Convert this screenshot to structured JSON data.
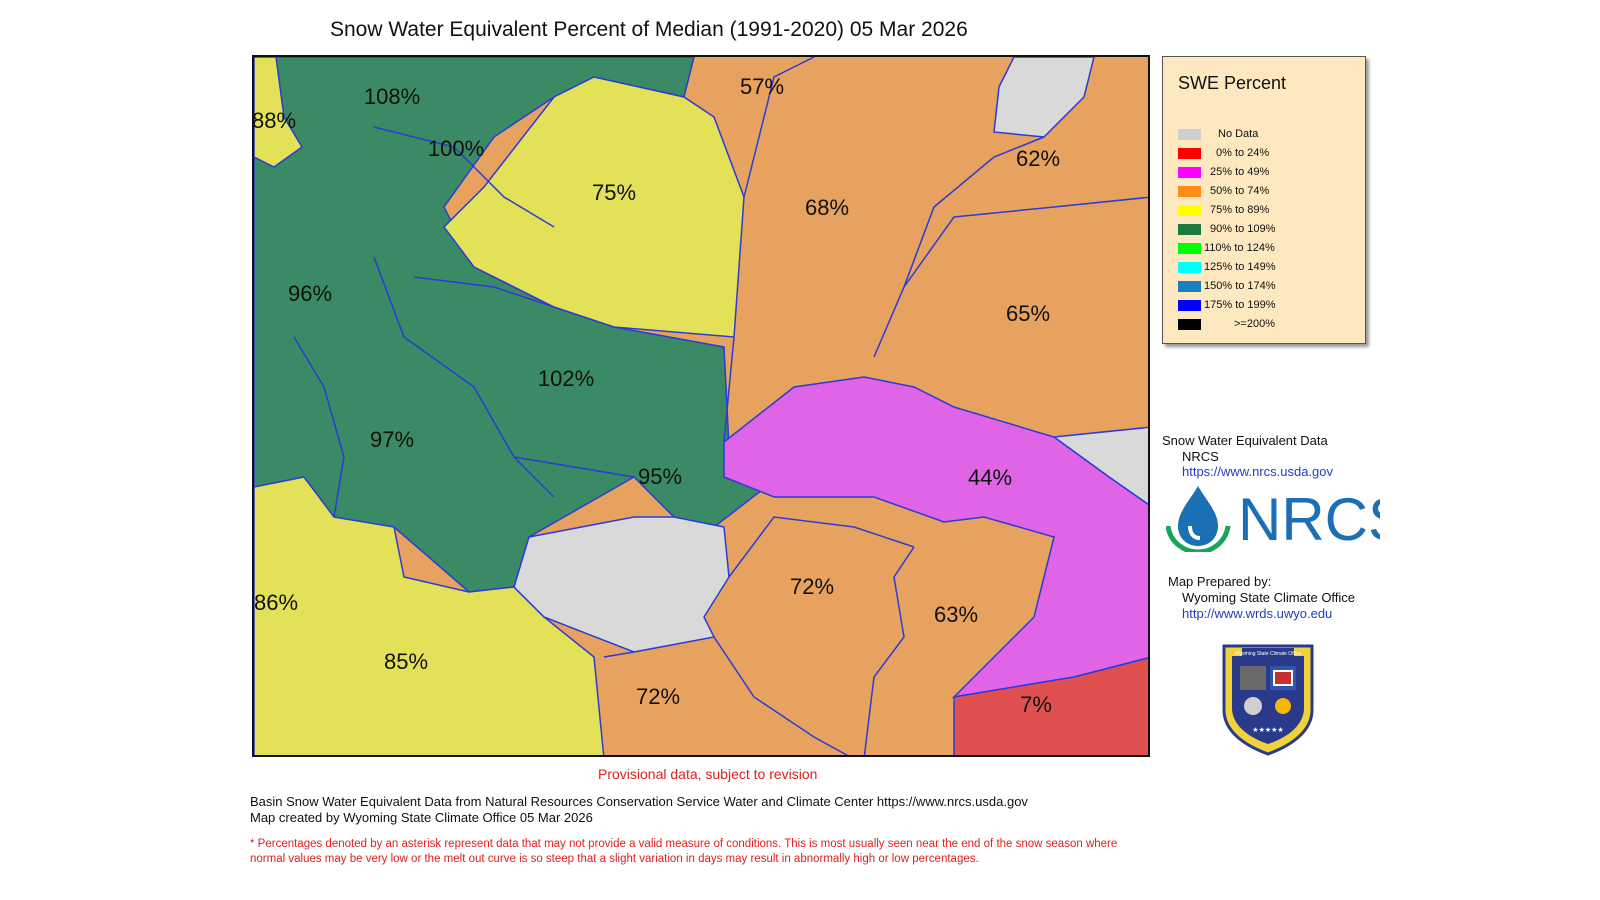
{
  "title": "Snow Water Equivalent Percent of Median (1991-2020) 05 Mar 2026",
  "basins": [
    {
      "label": "108%",
      "category": "90% to 109%"
    },
    {
      "label": "88%",
      "category": "75% to 89%"
    },
    {
      "label": "100%",
      "category": "90% to 109%"
    },
    {
      "label": "75%",
      "category": "75% to 89%"
    },
    {
      "label": "57%",
      "category": "50% to 74%"
    },
    {
      "label": "68%",
      "category": "50% to 74%"
    },
    {
      "label": "62%",
      "category": "50% to 74%"
    },
    {
      "label": "96%",
      "category": "90% to 109%"
    },
    {
      "label": "65%",
      "category": "50% to 74%"
    },
    {
      "label": "102%",
      "category": "90% to 109%"
    },
    {
      "label": "97%",
      "category": "90% to 109%"
    },
    {
      "label": "95%",
      "category": "90% to 109%"
    },
    {
      "label": "44%",
      "category": "25% to 49%"
    },
    {
      "label": "72%",
      "category": "50% to 74%"
    },
    {
      "label": "63%",
      "category": "50% to 74%"
    },
    {
      "label": "86%",
      "category": "75% to 89%"
    },
    {
      "label": "85%",
      "category": "75% to 89%"
    },
    {
      "label": "72%",
      "category": "50% to 74%"
    },
    {
      "label": "7%",
      "category": "0% to 24%"
    }
  ],
  "legend": {
    "title": "SWE Percent",
    "items": [
      {
        "label": "No Data",
        "color": "#cfcfcf"
      },
      {
        "label": "0% to  24%",
        "color": "#ff0000"
      },
      {
        "label": "25% to  49%",
        "color": "#ff00ff"
      },
      {
        "label": "50% to  74%",
        "color": "#ff8c1a"
      },
      {
        "label": "75% to  89%",
        "color": "#ffff00"
      },
      {
        "label": "90% to 109%",
        "color": "#1f7a3f"
      },
      {
        "label": "110% to 124%",
        "color": "#00ff00"
      },
      {
        "label": "125% to 149%",
        "color": "#00ffff"
      },
      {
        "label": "150% to 174%",
        "color": "#1a7fbf"
      },
      {
        "label": "175% to 199%",
        "color": "#0000ff"
      },
      {
        "label": ">=200%",
        "color": "#000000"
      }
    ]
  },
  "map_colors": {
    "green": "#3a8a66",
    "yellow": "#e3e158",
    "orange": "#e6a25e",
    "magenta": "#e064e6",
    "red": "#e05050",
    "gray": "#d9d9d9",
    "basin_border": "#2b3bd6"
  },
  "sources": {
    "swe_heading": "Snow Water Equivalent Data",
    "nrcs_name": "NRCS",
    "nrcs_url": "https://www.nrcs.usda.gov",
    "logo_text": "NRCS",
    "prepared_heading": "Map Prepared by:",
    "prepared_org": "Wyoming State Climate Office",
    "prepared_url": "http://www.wrds.uwyo.edu",
    "seal_text": "Wyoming State Climate Office"
  },
  "provisional": "Provisional data, subject to revision",
  "footer": {
    "line1": "Basin Snow Water Equivalent Data from Natural Resources Conservation Service Water and Climate Center https://www.nrcs.usda.gov",
    "line2": "Map created by Wyoming State Climate Office 05 Mar 2026",
    "note": "* Percentages denoted by an asterisk represent data that may not provide a valid measure of conditions.  This is most usually seen near the end of the snow season where normal values may be very low or the melt out curve is so steep that a slight variation in days may result in abnormally high or low percentages."
  }
}
